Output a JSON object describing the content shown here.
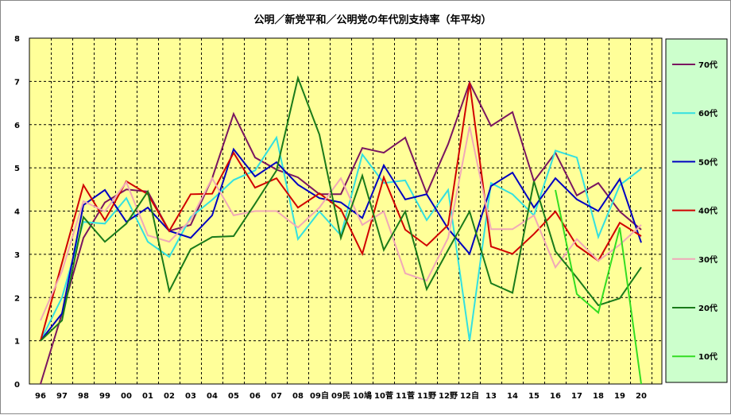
{
  "chart_data": {
    "type": "line",
    "title": "公明／新党平和／公明党の年代別支持率（年平均）",
    "xlabel": "",
    "ylabel": "",
    "ylim": [
      0,
      8
    ],
    "yticks": [
      "0",
      "1",
      "2",
      "3",
      "4",
      "5",
      "6",
      "7",
      "8"
    ],
    "grid": true,
    "legend_position": "right",
    "plot_background": "#ffff99",
    "legend_background": "#ccffcc",
    "categories": [
      "96",
      "97",
      "98",
      "99",
      "00",
      "01",
      "02",
      "03",
      "04",
      "05",
      "06",
      "07",
      "08",
      "09自",
      "09民",
      "10鳩",
      "10菅",
      "11菅",
      "11野",
      "12野",
      "12自",
      "13",
      "14",
      "15",
      "16",
      "17",
      "18",
      "19",
      "20"
    ],
    "series": [
      {
        "name": "70代",
        "color": "#7a1660",
        "values": [
          0,
          1.63,
          3.38,
          4.2,
          4.5,
          4.45,
          3.54,
          3.68,
          4.76,
          6.25,
          5.24,
          4.96,
          4.78,
          4.39,
          4.39,
          5.46,
          5.35,
          5.7,
          4.41,
          5.55,
          6.97,
          5.97,
          6.29,
          4.69,
          5.35,
          4.36,
          4.65,
          3.99,
          3.57
        ]
      },
      {
        "name": "60代",
        "color": "#33e0e0",
        "values": [
          1.0,
          2.0,
          3.75,
          3.71,
          4.3,
          3.29,
          2.94,
          3.86,
          4.26,
          4.72,
          4.94,
          5.7,
          3.35,
          3.99,
          3.44,
          5.31,
          4.65,
          4.71,
          3.79,
          4.49,
          1.0,
          4.65,
          4.39,
          3.9,
          5.4,
          5.24,
          3.4,
          4.6,
          4.98
        ]
      },
      {
        "name": "50代",
        "color": "#0000c0",
        "values": [
          1.0,
          1.63,
          4.14,
          4.49,
          3.75,
          4.08,
          3.54,
          3.38,
          3.9,
          5.43,
          4.8,
          5.13,
          4.61,
          4.3,
          4.2,
          3.84,
          5.06,
          4.27,
          4.39,
          3.59,
          3.01,
          4.58,
          4.89,
          4.08,
          4.76,
          4.27,
          4.0,
          4.74,
          3.27
        ]
      },
      {
        "name": "40代",
        "color": "#d00000",
        "values": [
          1.0,
          2.8,
          4.6,
          3.79,
          4.69,
          4.39,
          3.54,
          4.39,
          4.4,
          5.35,
          4.54,
          4.76,
          4.08,
          4.41,
          4.04,
          3.01,
          4.78,
          3.57,
          3.2,
          3.68,
          6.97,
          3.18,
          3.01,
          3.47,
          3.99,
          3.2,
          2.85,
          3.73,
          3.42
        ]
      },
      {
        "name": "30代",
        "color": "#f0a8b8",
        "values": [
          1.47,
          2.61,
          4.23,
          3.99,
          4.67,
          3.44,
          3.29,
          3.8,
          4.76,
          3.9,
          4.0,
          4.0,
          3.62,
          4.08,
          4.76,
          3.68,
          3.99,
          2.56,
          2.39,
          3.38,
          5.96,
          3.58,
          3.58,
          3.9,
          2.7,
          3.35,
          2.85,
          3.22,
          3.68
        ]
      },
      {
        "name": "20代",
        "color": "#1a7a1a",
        "values": [
          1.0,
          1.47,
          3.86,
          3.29,
          3.71,
          4.45,
          2.15,
          3.12,
          3.4,
          3.42,
          4.17,
          4.94,
          7.08,
          5.77,
          3.38,
          4.82,
          3.1,
          3.99,
          2.19,
          3.1,
          3.99,
          2.33,
          2.11,
          4.69,
          3.07,
          2.46,
          1.82,
          1.98,
          2.7
        ]
      },
      {
        "name": "10代",
        "color": "#33dd22",
        "values": [
          null,
          null,
          null,
          null,
          null,
          null,
          null,
          null,
          null,
          null,
          null,
          null,
          null,
          null,
          null,
          null,
          null,
          null,
          null,
          null,
          null,
          null,
          null,
          null,
          4.49,
          2.08,
          1.65,
          3.62,
          0
        ]
      }
    ]
  }
}
